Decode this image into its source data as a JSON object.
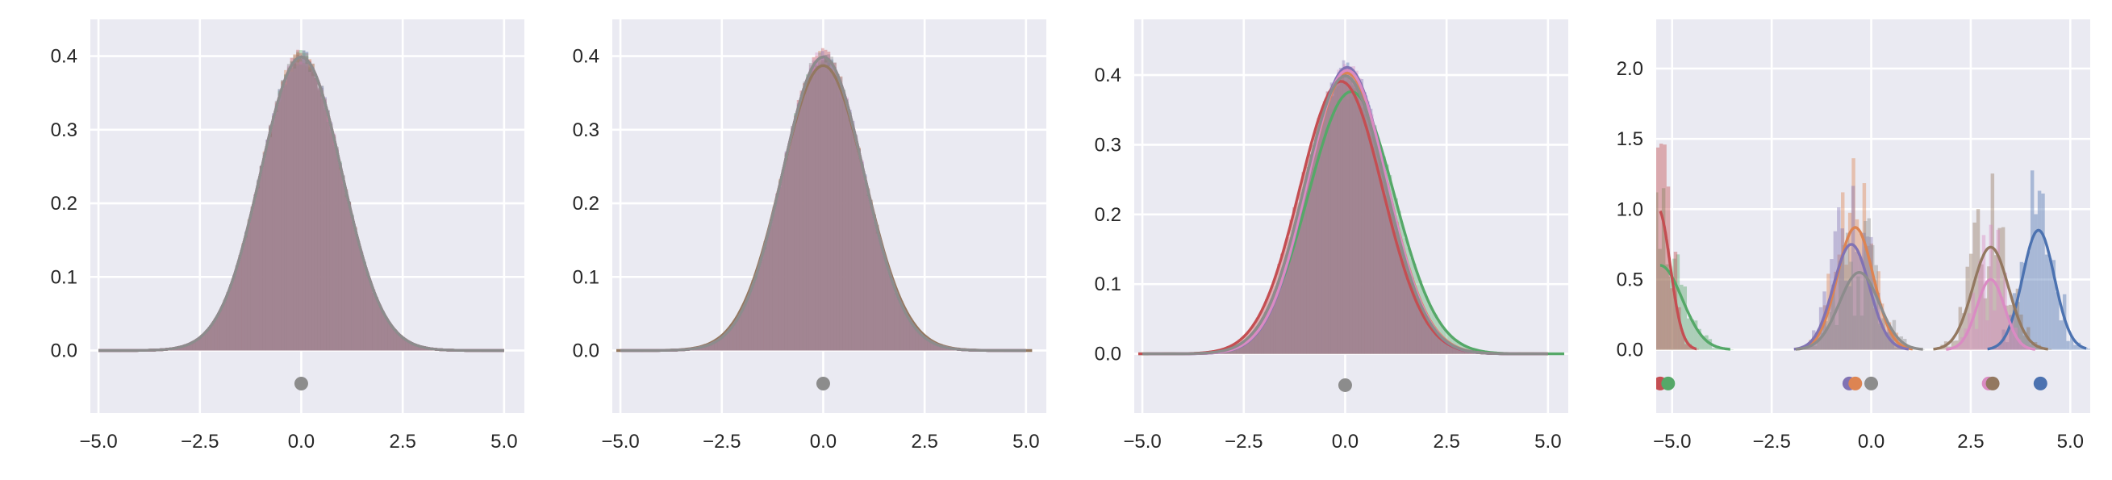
{
  "colors": {
    "axes_bg": "#eaeaf2",
    "grid": "#ffffff",
    "series": [
      "#4c72b0",
      "#dd8452",
      "#55a868",
      "#c44e52",
      "#8172b3",
      "#937860",
      "#da8bc3",
      "#8c8c8c"
    ]
  },
  "chart_data": [
    {
      "type": "histogram+kde",
      "xlim": [
        -5.2,
        5.5
      ],
      "ylim": [
        -0.085,
        0.45
      ],
      "xticks": [
        "−5.0",
        "−2.5",
        "0.0",
        "2.5",
        "5.0"
      ],
      "xtick_values": [
        -5.0,
        -2.5,
        0.0,
        2.5,
        5.0
      ],
      "yticks": [
        "0.0",
        "0.1",
        "0.2",
        "0.3",
        "0.4"
      ],
      "ytick_values": [
        0.0,
        0.1,
        0.2,
        0.3,
        0.4
      ],
      "grid": true,
      "series": [
        {
          "mu": 0.0,
          "sigma": 1.0
        },
        {
          "mu": 0.0,
          "sigma": 1.0
        },
        {
          "mu": 0.0,
          "sigma": 1.0
        },
        {
          "mu": 0.0,
          "sigma": 1.0
        },
        {
          "mu": 0.0,
          "sigma": 1.0
        },
        {
          "mu": 0.0,
          "sigma": 1.0
        },
        {
          "mu": 0.0,
          "sigma": 1.0
        },
        {
          "mu": 0.0,
          "sigma": 1.0
        }
      ],
      "mean_markers": [
        {
          "x": 0.0,
          "y": -0.045
        }
      ]
    },
    {
      "type": "histogram+kde",
      "xlim": [
        -5.2,
        5.5
      ],
      "ylim": [
        -0.085,
        0.45
      ],
      "xticks": [
        "−5.0",
        "−2.5",
        "0.0",
        "2.5",
        "5.0"
      ],
      "xtick_values": [
        -5.0,
        -2.5,
        0.0,
        2.5,
        5.0
      ],
      "yticks": [
        "0.0",
        "0.1",
        "0.2",
        "0.3",
        "0.4"
      ],
      "ytick_values": [
        0.0,
        0.1,
        0.2,
        0.3,
        0.4
      ],
      "grid": true,
      "series": [
        {
          "mu": 0.0,
          "sigma": 1.0
        },
        {
          "mu": 0.0,
          "sigma": 1.0
        },
        {
          "mu": 0.0,
          "sigma": 1.0
        },
        {
          "mu": 0.0,
          "sigma": 1.0
        },
        {
          "mu": 0.0,
          "sigma": 1.0
        },
        {
          "mu": 0.0,
          "sigma": 1.03
        },
        {
          "mu": 0.0,
          "sigma": 1.0
        },
        {
          "mu": 0.0,
          "sigma": 1.0
        }
      ],
      "mean_markers": [
        {
          "x": 0.0,
          "y": -0.045
        }
      ]
    },
    {
      "type": "histogram+kde",
      "xlim": [
        -5.2,
        5.5
      ],
      "ylim": [
        -0.085,
        0.48
      ],
      "xticks": [
        "−5.0",
        "−2.5",
        "0.0",
        "2.5",
        "5.0"
      ],
      "xtick_values": [
        -5.0,
        -2.5,
        0.0,
        2.5,
        5.0
      ],
      "yticks": [
        "0.0",
        "0.1",
        "0.2",
        "0.3",
        "0.4"
      ],
      "ytick_values": [
        0.0,
        0.1,
        0.2,
        0.3,
        0.4
      ],
      "grid": true,
      "series": [
        {
          "mu": 0.05,
          "sigma": 0.98
        },
        {
          "mu": 0.05,
          "sigma": 0.99
        },
        {
          "mu": 0.15,
          "sigma": 1.06
        },
        {
          "mu": -0.1,
          "sigma": 1.02
        },
        {
          "mu": 0.05,
          "sigma": 0.97
        },
        {
          "mu": 0.0,
          "sigma": 1.0
        },
        {
          "mu": 0.05,
          "sigma": 0.98
        },
        {
          "mu": 0.0,
          "sigma": 1.0
        }
      ],
      "mean_markers": [
        {
          "x": 0.0,
          "y": -0.045
        }
      ]
    },
    {
      "type": "histogram+kde",
      "xlim": [
        -5.4,
        5.5
      ],
      "ylim": [
        -0.45,
        2.35
      ],
      "xticks": [
        "−5.0",
        "−2.5",
        "0.0",
        "2.5",
        "5.0"
      ],
      "xtick_values": [
        -5.0,
        -2.5,
        0.0,
        2.5,
        5.0
      ],
      "yticks": [
        "0.0",
        "0.5",
        "1.0",
        "1.5",
        "2.0"
      ],
      "ytick_values": [
        0.0,
        0.5,
        1.0,
        1.5,
        2.0
      ],
      "grid": true,
      "series": [
        {
          "mu": 4.2,
          "sigma": 0.4,
          "peak": 0.85
        },
        {
          "mu": -0.4,
          "sigma": 0.45,
          "peak": 0.87
        },
        {
          "mu": -5.3,
          "sigma": 0.55,
          "peak": 0.6
        },
        {
          "mu": -5.35,
          "sigma": 0.3,
          "peak": 1.0
        },
        {
          "mu": -0.5,
          "sigma": 0.45,
          "peak": 0.75
        },
        {
          "mu": 3.0,
          "sigma": 0.45,
          "peak": 0.73
        },
        {
          "mu": 3.0,
          "sigma": 0.35,
          "peak": 0.5
        },
        {
          "mu": -0.3,
          "sigma": 0.5,
          "peak": 0.55
        }
      ],
      "mean_markers": [
        {
          "x": -5.3,
          "y": -0.24,
          "series": 3
        },
        {
          "x": -5.1,
          "y": -0.24,
          "series": 2
        },
        {
          "x": -0.55,
          "y": -0.24,
          "series": 4
        },
        {
          "x": -0.4,
          "y": -0.24,
          "series": 1
        },
        {
          "x": 0.0,
          "y": -0.24,
          "series": 7
        },
        {
          "x": 2.95,
          "y": -0.24,
          "series": 6
        },
        {
          "x": 3.05,
          "y": -0.24,
          "series": 5
        },
        {
          "x": 4.25,
          "y": -0.24,
          "series": 0
        }
      ]
    }
  ]
}
